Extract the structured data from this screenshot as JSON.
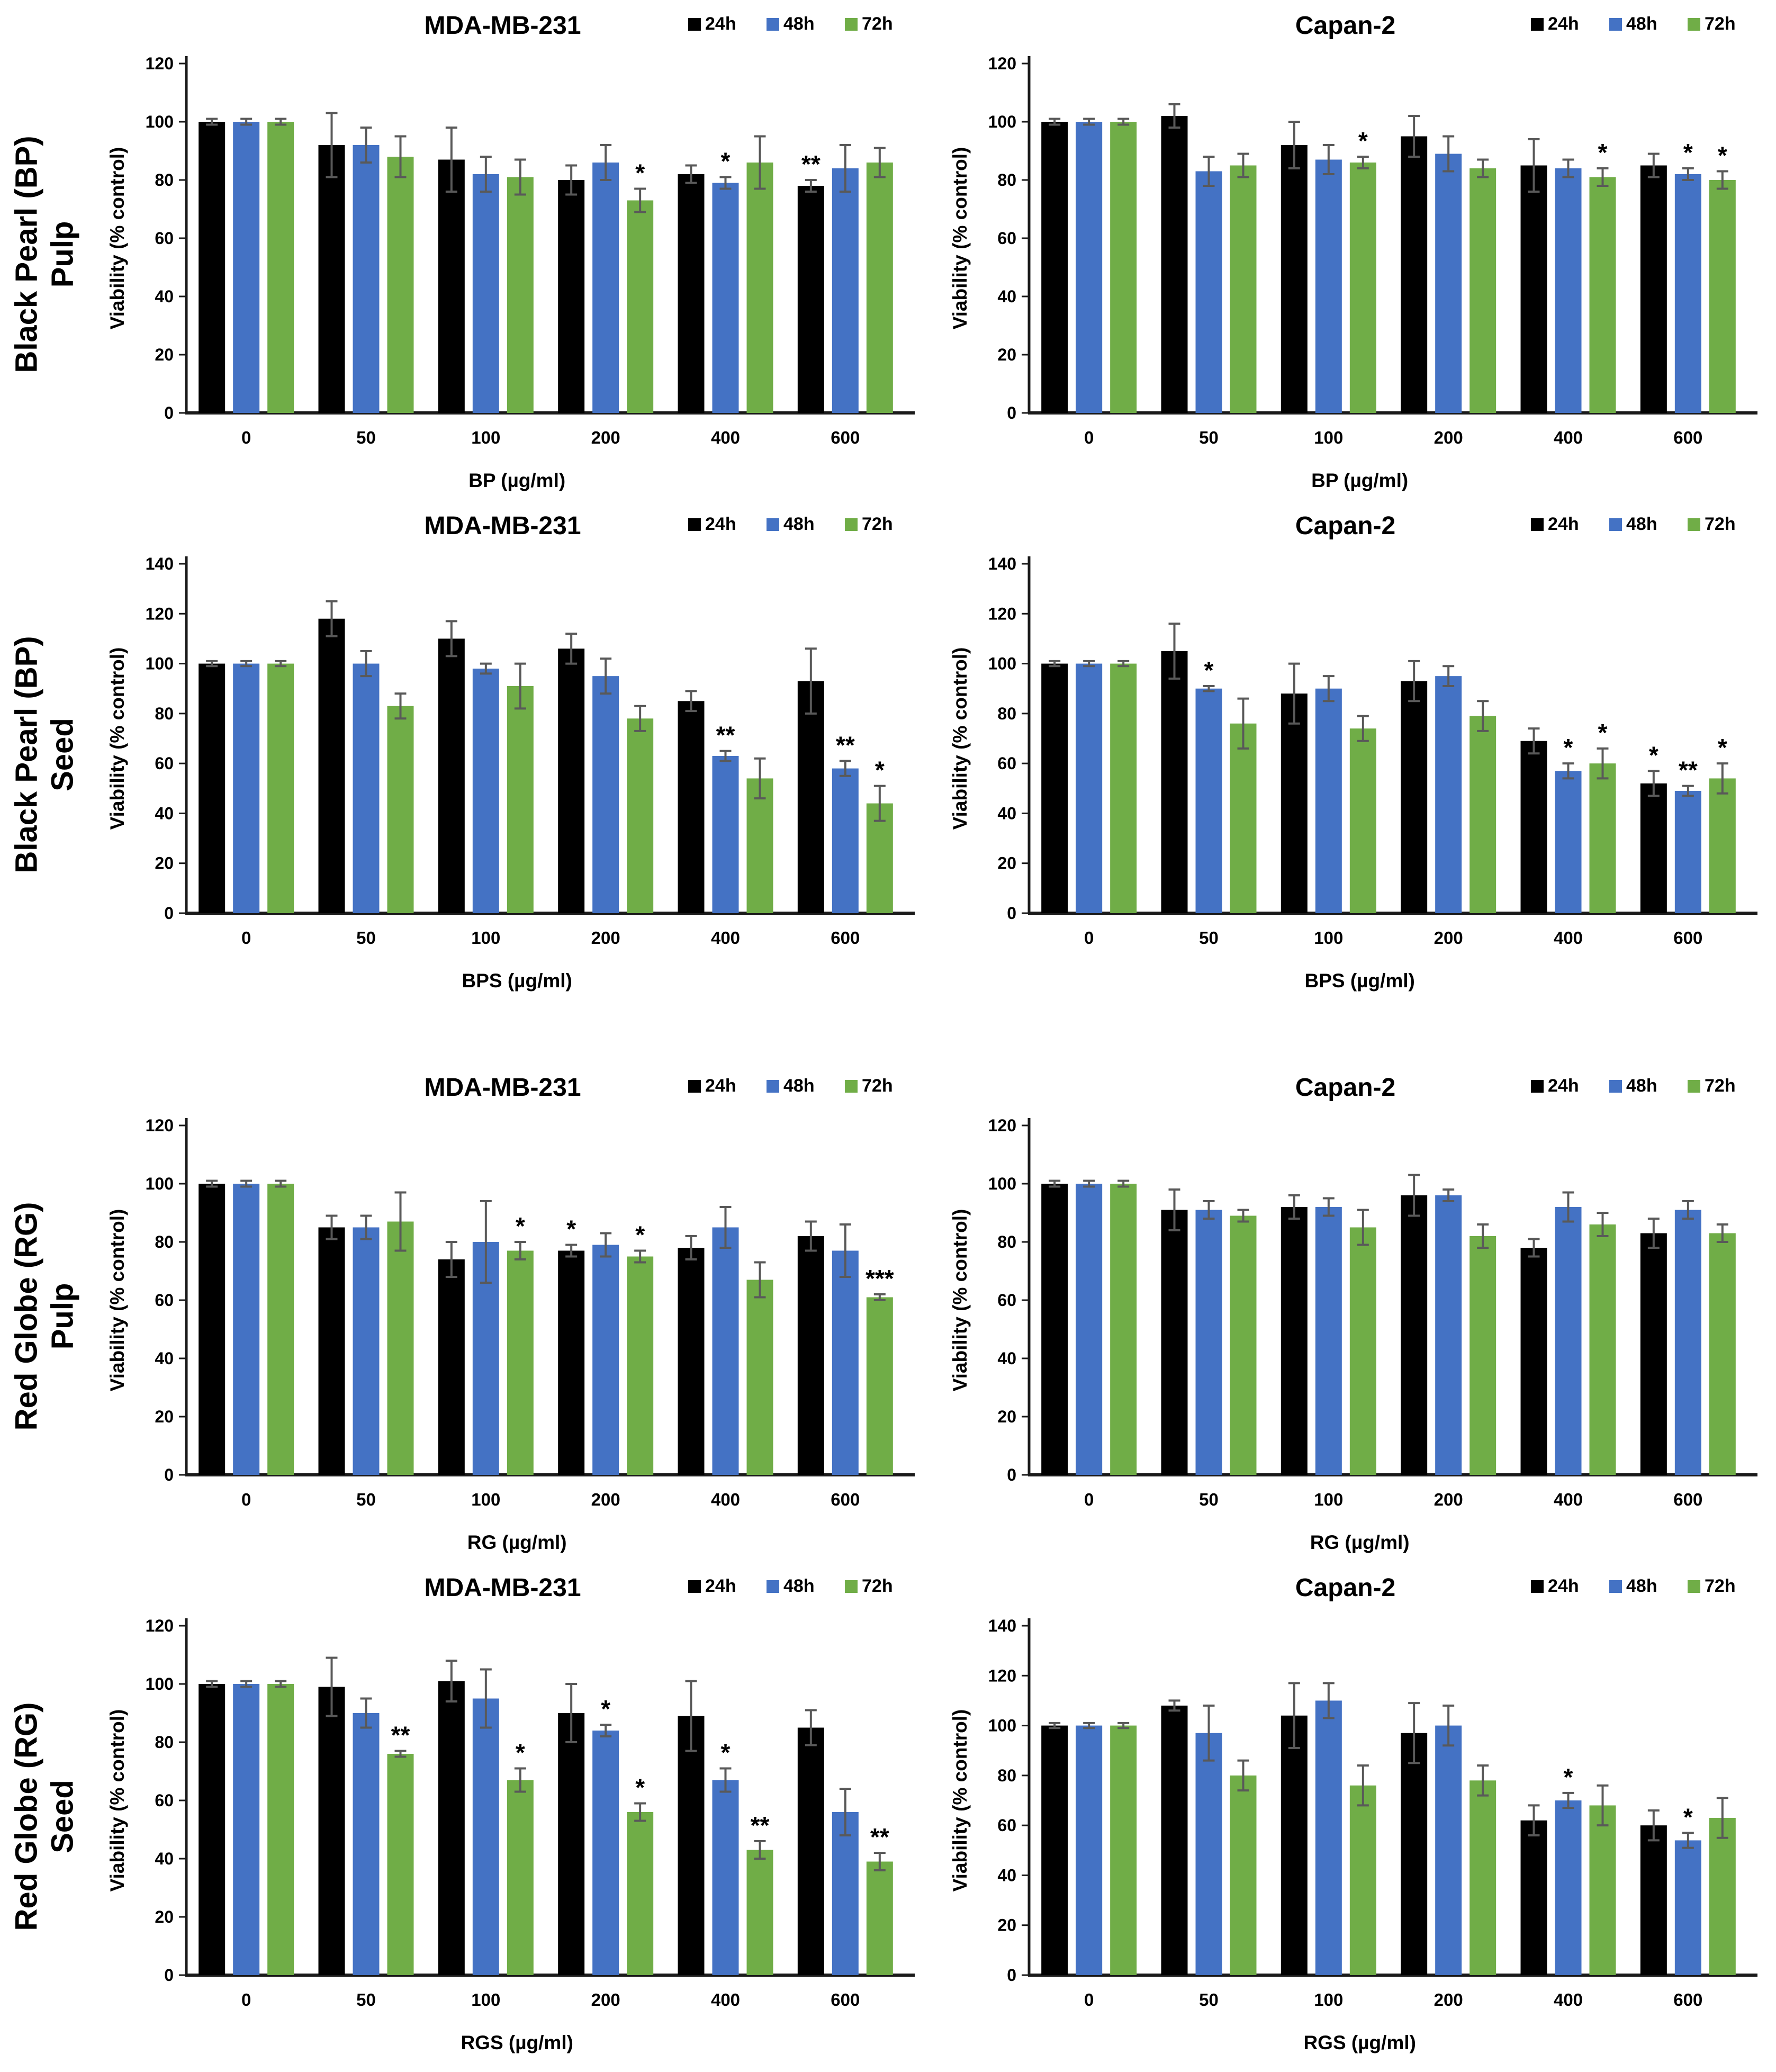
{
  "figure": {
    "background": "#ffffff",
    "time_legend": [
      "24h",
      "48h",
      "72h"
    ]
  },
  "colors": {
    "series_24h": "#000000",
    "series_48h": "#4472c4",
    "series_72h": "#70ad47",
    "error_bar": "#595959",
    "axis": "#1a1a1a",
    "text": "#000000"
  },
  "rows": [
    {
      "label_line1": "Black Pearl (BP)",
      "label_line2": "Pulp"
    },
    {
      "label_line1": "Black Pearl (BP)",
      "label_line2": "Seed"
    },
    {
      "label_line1": "Red Globe (RG)",
      "label_line2": "Pulp"
    },
    {
      "label_line1": "Red Globe (RG)",
      "label_line2": "Seed"
    }
  ],
  "chart_data": [
    {
      "type": "bar",
      "row": 0,
      "col": 0,
      "title": "MDA-MB-231",
      "xlabel": "BP (µg/ml)",
      "ylabel": "Viability (% control)",
      "ylim": [
        0,
        120
      ],
      "ytick_step": 20,
      "grid": false,
      "legend_position": "top-right",
      "categories": [
        "0",
        "50",
        "100",
        "200",
        "400",
        "600"
      ],
      "series": [
        {
          "name": "24h",
          "color": "#000000",
          "values": [
            100,
            92,
            87,
            80,
            82,
            78
          ],
          "errors": [
            1,
            11,
            11,
            5,
            3,
            2
          ],
          "sig": [
            "",
            "",
            "",
            "",
            "",
            "**"
          ]
        },
        {
          "name": "48h",
          "color": "#4472c4",
          "values": [
            100,
            92,
            82,
            86,
            79,
            84
          ],
          "errors": [
            1,
            6,
            6,
            6,
            2,
            8
          ],
          "sig": [
            "",
            "",
            "",
            "",
            "*",
            ""
          ]
        },
        {
          "name": "72h",
          "color": "#70ad47",
          "values": [
            100,
            88,
            81,
            73,
            86,
            86
          ],
          "errors": [
            1,
            7,
            6,
            4,
            9,
            5
          ],
          "sig": [
            "",
            "",
            "",
            "*",
            "",
            ""
          ]
        }
      ]
    },
    {
      "type": "bar",
      "row": 0,
      "col": 1,
      "title": "Capan-2",
      "xlabel": "BP (µg/ml)",
      "ylabel": "Viability (% control)",
      "ylim": [
        0,
        120
      ],
      "ytick_step": 20,
      "grid": false,
      "legend_position": "top-right",
      "categories": [
        "0",
        "50",
        "100",
        "200",
        "400",
        "600"
      ],
      "series": [
        {
          "name": "24h",
          "color": "#000000",
          "values": [
            100,
            102,
            92,
            95,
            85,
            85
          ],
          "errors": [
            1,
            4,
            8,
            7,
            9,
            4
          ],
          "sig": [
            "",
            "",
            "",
            "",
            "",
            ""
          ]
        },
        {
          "name": "48h",
          "color": "#4472c4",
          "values": [
            100,
            83,
            87,
            89,
            84,
            82
          ],
          "errors": [
            1,
            5,
            5,
            6,
            3,
            2
          ],
          "sig": [
            "",
            "",
            "",
            "",
            "",
            "*"
          ]
        },
        {
          "name": "72h",
          "color": "#70ad47",
          "values": [
            100,
            85,
            86,
            84,
            81,
            80
          ],
          "errors": [
            1,
            4,
            2,
            3,
            3,
            3
          ],
          "sig": [
            "",
            "",
            "*",
            "",
            "*",
            "*"
          ]
        }
      ]
    },
    {
      "type": "bar",
      "row": 1,
      "col": 0,
      "title": "MDA-MB-231",
      "xlabel": "BPS (µg/ml)",
      "ylabel": "Viability (% control)",
      "ylim": [
        0,
        140
      ],
      "ytick_step": 20,
      "grid": false,
      "legend_position": "top-right",
      "categories": [
        "0",
        "50",
        "100",
        "200",
        "400",
        "600"
      ],
      "series": [
        {
          "name": "24h",
          "color": "#000000",
          "values": [
            100,
            118,
            110,
            106,
            85,
            93
          ],
          "errors": [
            1,
            7,
            7,
            6,
            4,
            13
          ],
          "sig": [
            "",
            "",
            "",
            "",
            "",
            ""
          ]
        },
        {
          "name": "48h",
          "color": "#4472c4",
          "values": [
            100,
            100,
            98,
            95,
            63,
            58
          ],
          "errors": [
            1,
            5,
            2,
            7,
            2,
            3
          ],
          "sig": [
            "",
            "",
            "",
            "",
            "**",
            "**"
          ]
        },
        {
          "name": "72h",
          "color": "#70ad47",
          "values": [
            100,
            83,
            91,
            78,
            54,
            44
          ],
          "errors": [
            1,
            5,
            9,
            5,
            8,
            7
          ],
          "sig": [
            "",
            "",
            "",
            "",
            "",
            "*"
          ]
        }
      ]
    },
    {
      "type": "bar",
      "row": 1,
      "col": 1,
      "title": "Capan-2",
      "xlabel": "BPS (µg/ml)",
      "ylabel": "Viability (% control)",
      "ylim": [
        0,
        140
      ],
      "ytick_step": 20,
      "grid": false,
      "legend_position": "top-right",
      "categories": [
        "0",
        "50",
        "100",
        "200",
        "400",
        "600"
      ],
      "series": [
        {
          "name": "24h",
          "color": "#000000",
          "values": [
            100,
            105,
            88,
            93,
            69,
            52
          ],
          "errors": [
            1,
            11,
            12,
            8,
            5,
            5
          ],
          "sig": [
            "",
            "",
            "",
            "",
            "",
            "*"
          ]
        },
        {
          "name": "48h",
          "color": "#4472c4",
          "values": [
            100,
            90,
            90,
            95,
            57,
            49
          ],
          "errors": [
            1,
            1,
            5,
            4,
            3,
            2
          ],
          "sig": [
            "",
            "*",
            "",
            "",
            "*",
            "**"
          ]
        },
        {
          "name": "72h",
          "color": "#70ad47",
          "values": [
            100,
            76,
            74,
            79,
            60,
            54
          ],
          "errors": [
            1,
            10,
            5,
            6,
            6,
            6
          ],
          "sig": [
            "",
            "",
            "",
            "",
            "*",
            "*"
          ]
        }
      ]
    },
    {
      "type": "bar",
      "row": 2,
      "col": 0,
      "title": "MDA-MB-231",
      "xlabel": "RG (µg/ml)",
      "ylabel": "Viability (% control)",
      "ylim": [
        0,
        120
      ],
      "ytick_step": 20,
      "grid": false,
      "legend_position": "top-right",
      "categories": [
        "0",
        "50",
        "100",
        "200",
        "400",
        "600"
      ],
      "series": [
        {
          "name": "24h",
          "color": "#000000",
          "values": [
            100,
            85,
            74,
            77,
            78,
            82
          ],
          "errors": [
            1,
            4,
            6,
            2,
            4,
            5
          ],
          "sig": [
            "",
            "",
            "",
            "*",
            "",
            ""
          ]
        },
        {
          "name": "48h",
          "color": "#4472c4",
          "values": [
            100,
            85,
            80,
            79,
            85,
            77
          ],
          "errors": [
            1,
            4,
            14,
            4,
            7,
            9
          ],
          "sig": [
            "",
            "",
            "",
            "",
            "",
            ""
          ]
        },
        {
          "name": "72h",
          "color": "#70ad47",
          "values": [
            100,
            87,
            77,
            75,
            67,
            61
          ],
          "errors": [
            1,
            10,
            3,
            2,
            6,
            1
          ],
          "sig": [
            "",
            "",
            "*",
            "*",
            "",
            "***"
          ]
        }
      ]
    },
    {
      "type": "bar",
      "row": 2,
      "col": 1,
      "title": "Capan-2",
      "xlabel": "RG (µg/ml)",
      "ylabel": "Viability (% control)",
      "ylim": [
        0,
        120
      ],
      "ytick_step": 20,
      "grid": false,
      "legend_position": "top-right",
      "categories": [
        "0",
        "50",
        "100",
        "200",
        "400",
        "600"
      ],
      "series": [
        {
          "name": "24h",
          "color": "#000000",
          "values": [
            100,
            91,
            92,
            96,
            78,
            83
          ],
          "errors": [
            1,
            7,
            4,
            7,
            3,
            5
          ],
          "sig": [
            "",
            "",
            "",
            "",
            "",
            ""
          ]
        },
        {
          "name": "48h",
          "color": "#4472c4",
          "values": [
            100,
            91,
            92,
            96,
            92,
            91
          ],
          "errors": [
            1,
            3,
            3,
            2,
            5,
            3
          ],
          "sig": [
            "",
            "",
            "",
            "",
            "",
            ""
          ]
        },
        {
          "name": "72h",
          "color": "#70ad47",
          "values": [
            100,
            89,
            85,
            82,
            86,
            83
          ],
          "errors": [
            1,
            2,
            6,
            4,
            4,
            3
          ],
          "sig": [
            "",
            "",
            "",
            "",
            "",
            ""
          ]
        }
      ]
    },
    {
      "type": "bar",
      "row": 3,
      "col": 0,
      "title": "MDA-MB-231",
      "xlabel": "RGS (µg/ml)",
      "ylabel": "Viability (% control)",
      "ylim": [
        0,
        120
      ],
      "ytick_step": 20,
      "grid": false,
      "legend_position": "top-right",
      "categories": [
        "0",
        "50",
        "100",
        "200",
        "400",
        "600"
      ],
      "series": [
        {
          "name": "24h",
          "color": "#000000",
          "values": [
            100,
            99,
            101,
            90,
            89,
            85
          ],
          "errors": [
            1,
            10,
            7,
            10,
            12,
            6
          ],
          "sig": [
            "",
            "",
            "",
            "",
            "",
            ""
          ]
        },
        {
          "name": "48h",
          "color": "#4472c4",
          "values": [
            100,
            90,
            95,
            84,
            67,
            56
          ],
          "errors": [
            1,
            5,
            10,
            2,
            4,
            8
          ],
          "sig": [
            "",
            "",
            "",
            "*",
            "*",
            ""
          ]
        },
        {
          "name": "72h",
          "color": "#70ad47",
          "values": [
            100,
            76,
            67,
            56,
            43,
            39
          ],
          "errors": [
            1,
            1,
            4,
            3,
            3,
            3
          ],
          "sig": [
            "",
            "**",
            "*",
            "*",
            "**",
            "**"
          ]
        }
      ]
    },
    {
      "type": "bar",
      "row": 3,
      "col": 1,
      "title": "Capan-2",
      "xlabel": "RGS (µg/ml)",
      "ylabel": "Viability (% control)",
      "ylim": [
        0,
        140
      ],
      "ytick_step": 20,
      "grid": false,
      "legend_position": "top-right",
      "categories": [
        "0",
        "50",
        "100",
        "200",
        "400",
        "600"
      ],
      "series": [
        {
          "name": "24h",
          "color": "#000000",
          "values": [
            100,
            108,
            104,
            97,
            62,
            60
          ],
          "errors": [
            1,
            2,
            13,
            12,
            6,
            6
          ],
          "sig": [
            "",
            "",
            "",
            "",
            "",
            ""
          ]
        },
        {
          "name": "48h",
          "color": "#4472c4",
          "values": [
            100,
            97,
            110,
            100,
            70,
            54
          ],
          "errors": [
            1,
            11,
            7,
            8,
            3,
            3
          ],
          "sig": [
            "",
            "",
            "",
            "",
            "*",
            "*"
          ]
        },
        {
          "name": "72h",
          "color": "#70ad47",
          "values": [
            100,
            80,
            76,
            78,
            68,
            63
          ],
          "errors": [
            1,
            6,
            8,
            6,
            8,
            8
          ],
          "sig": [
            "",
            "",
            "",
            "",
            "",
            ""
          ]
        }
      ]
    }
  ]
}
